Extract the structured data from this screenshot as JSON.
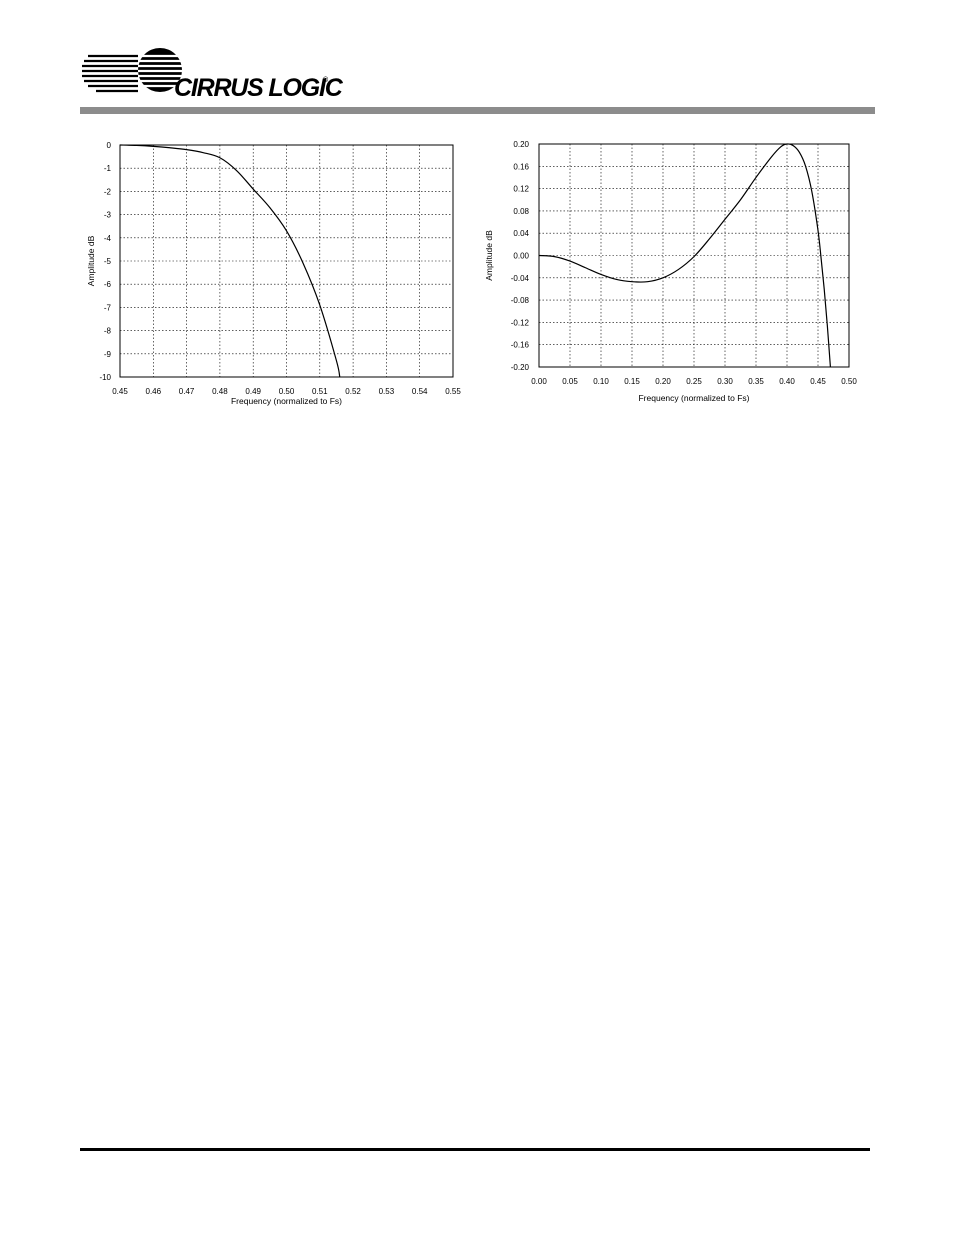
{
  "header": {
    "logo_text": "CIRRUS LOGIC",
    "logo_mark": "®",
    "bar_color": "#8c8c8c"
  },
  "chart_data": [
    {
      "type": "line",
      "title": "",
      "xlabel": "Frequency (normalized to Fs)",
      "ylabel": "Amplitude dB",
      "xlim": [
        0.45,
        0.55
      ],
      "ylim": [
        -10,
        0
      ],
      "x_ticks": [
        "0.45",
        "0.46",
        "0.47",
        "0.48",
        "0.49",
        "0.50",
        "0.51",
        "0.52",
        "0.53",
        "0.54",
        "0.55"
      ],
      "y_ticks": [
        "0",
        "-1",
        "-2",
        "-3",
        "-4",
        "-5",
        "-6",
        "-7",
        "-8",
        "-9",
        "-10"
      ],
      "grid": true,
      "series": [
        {
          "x": [
            0.45,
            0.455,
            0.46,
            0.465,
            0.47,
            0.475,
            0.48,
            0.485,
            0.49,
            0.495,
            0.5,
            0.505,
            0.51,
            0.515,
            0.516
          ],
          "y": [
            0,
            -0.02,
            -0.06,
            -0.12,
            -0.2,
            -0.33,
            -0.55,
            -1.1,
            -1.9,
            -2.7,
            -3.7,
            -5.1,
            -6.9,
            -9.3,
            -10
          ]
        }
      ]
    },
    {
      "type": "line",
      "title": "",
      "xlabel": "Frequency (normalized to Fs)",
      "ylabel": "Amplitude dB",
      "xlim": [
        0.0,
        0.5
      ],
      "ylim": [
        -0.2,
        0.2
      ],
      "x_ticks": [
        "0.00",
        "0.05",
        "0.10",
        "0.15",
        "0.20",
        "0.25",
        "0.30",
        "0.35",
        "0.40",
        "0.45",
        "0.50"
      ],
      "y_ticks": [
        "0.20",
        "0.16",
        "0.12",
        "0.08",
        "0.04",
        "0.00",
        "-0.04",
        "-0.08",
        "-0.12",
        "-0.16",
        "-0.20"
      ],
      "grid": true,
      "series": [
        {
          "x": [
            0.0,
            0.025,
            0.05,
            0.075,
            0.1,
            0.125,
            0.15,
            0.175,
            0.2,
            0.225,
            0.25,
            0.275,
            0.3,
            0.325,
            0.35,
            0.375,
            0.39,
            0.4,
            0.41,
            0.42,
            0.43,
            0.44,
            0.45,
            0.455,
            0.46,
            0.465,
            0.47
          ],
          "y": [
            0.0,
            -0.002,
            -0.01,
            -0.022,
            -0.034,
            -0.043,
            -0.047,
            -0.047,
            -0.04,
            -0.025,
            -0.002,
            0.03,
            0.065,
            0.1,
            0.14,
            0.177,
            0.195,
            0.2,
            0.197,
            0.185,
            0.16,
            0.115,
            0.045,
            -0.005,
            -0.06,
            -0.125,
            -0.2
          ]
        }
      ]
    }
  ]
}
